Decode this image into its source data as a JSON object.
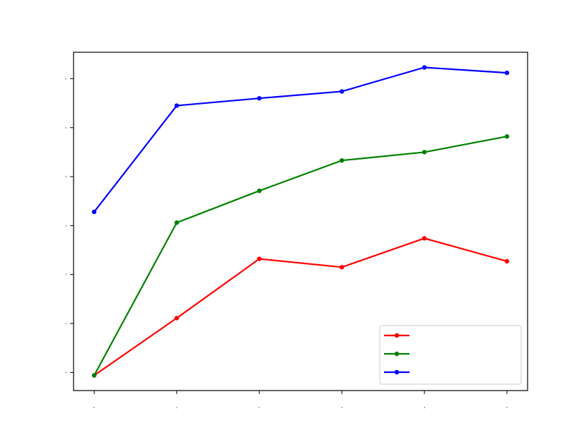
{
  "chart_data": {
    "type": "line",
    "x": [
      0,
      1,
      2,
      3,
      4,
      5
    ],
    "xlim": [
      -0.25,
      5.25
    ],
    "xticks": [
      0,
      1,
      2,
      3,
      4,
      5
    ],
    "ylim": [
      -0.37,
      6.54
    ],
    "yticks": [
      0,
      1,
      2,
      3,
      4,
      5,
      6
    ],
    "legend": "lower right",
    "series": [
      {
        "color": "#ff0000",
        "values": [
          -0.06,
          1.11,
          2.32,
          2.15,
          2.74,
          2.27
        ]
      },
      {
        "color": "#008000",
        "values": [
          -0.06,
          3.06,
          3.71,
          4.33,
          4.5,
          4.82
        ]
      },
      {
        "color": "#0000ff",
        "values": [
          3.28,
          5.45,
          5.6,
          5.74,
          6.23,
          6.12
        ]
      }
    ]
  }
}
